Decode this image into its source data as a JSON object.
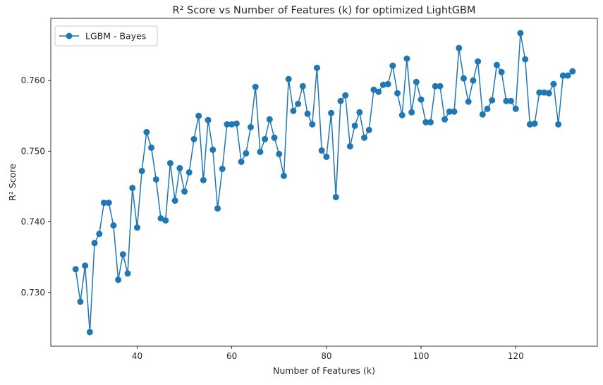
{
  "chart_data": {
    "type": "line",
    "title": "R² Score vs Number of Features (k) for optimized LightGBM",
    "xlabel": "Number of Features (k)",
    "ylabel": "R² Score",
    "xlim": [
      21.75,
      137.25
    ],
    "ylim": [
      0.7224,
      0.7688
    ],
    "xticks": [
      40,
      60,
      80,
      100,
      120
    ],
    "yticks": [
      0.73,
      0.74,
      0.75,
      0.76
    ],
    "ytick_labels": [
      "0.730",
      "0.740",
      "0.750",
      "0.760"
    ],
    "grid": false,
    "legend_position": "top-left",
    "series": [
      {
        "name": "LGBM - Bayes",
        "color": "#1f77b4",
        "marker": "circle",
        "x": [
          27,
          28,
          29,
          30,
          31,
          32,
          33,
          34,
          35,
          36,
          37,
          38,
          39,
          40,
          41,
          42,
          43,
          44,
          45,
          46,
          47,
          48,
          49,
          50,
          51,
          52,
          53,
          54,
          55,
          56,
          57,
          58,
          59,
          60,
          61,
          62,
          63,
          64,
          65,
          66,
          67,
          68,
          69,
          70,
          71,
          72,
          73,
          74,
          75,
          76,
          77,
          78,
          79,
          80,
          81,
          82,
          83,
          84,
          85,
          86,
          87,
          88,
          89,
          90,
          91,
          92,
          93,
          94,
          95,
          96,
          97,
          98,
          99,
          100,
          101,
          102,
          103,
          104,
          105,
          106,
          107,
          108,
          109,
          110,
          111,
          112,
          113,
          114,
          115,
          116,
          117,
          118,
          119,
          120,
          121,
          122,
          123,
          124,
          125,
          126,
          127,
          128,
          129,
          130,
          131,
          132
        ],
        "y": [
          0.7333,
          0.7287,
          0.7338,
          0.7244,
          0.737,
          0.7383,
          0.7427,
          0.7427,
          0.7395,
          0.7318,
          0.7354,
          0.7327,
          0.7448,
          0.7392,
          0.7472,
          0.7527,
          0.7505,
          0.746,
          0.7405,
          0.7402,
          0.7483,
          0.743,
          0.7476,
          0.7443,
          0.747,
          0.7517,
          0.755,
          0.7459,
          0.7544,
          0.7502,
          0.7419,
          0.7475,
          0.7538,
          0.7538,
          0.7539,
          0.7485,
          0.7497,
          0.7534,
          0.7591,
          0.7499,
          0.7517,
          0.7545,
          0.7519,
          0.7496,
          0.7465,
          0.7602,
          0.7557,
          0.7567,
          0.7592,
          0.7553,
          0.7538,
          0.7618,
          0.7501,
          0.7492,
          0.7554,
          0.7435,
          0.7571,
          0.7579,
          0.7507,
          0.7536,
          0.7555,
          0.7519,
          0.753,
          0.7587,
          0.7584,
          0.7594,
          0.7595,
          0.7621,
          0.7582,
          0.7551,
          0.7631,
          0.7555,
          0.7598,
          0.7573,
          0.7541,
          0.7541,
          0.7592,
          0.7592,
          0.7545,
          0.7556,
          0.7556,
          0.7646,
          0.7603,
          0.757,
          0.76,
          0.7627,
          0.7552,
          0.756,
          0.7572,
          0.7622,
          0.7612,
          0.7571,
          0.7571,
          0.756,
          0.7667,
          0.763,
          0.7538,
          0.7539,
          0.7583,
          0.7583,
          0.7582,
          0.7595,
          0.7538,
          0.7607,
          0.7607,
          0.7613
        ]
      }
    ]
  }
}
